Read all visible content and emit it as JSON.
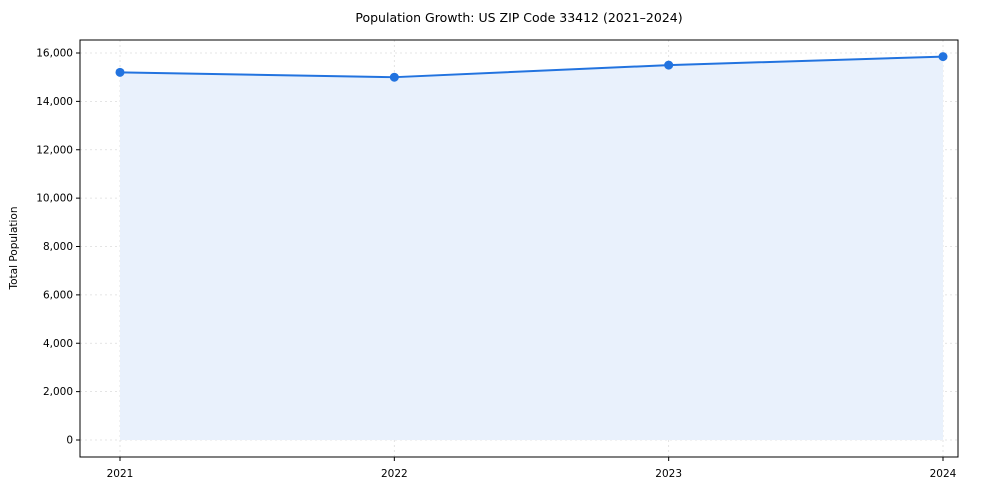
{
  "chart_data": {
    "type": "area",
    "title": "Population Growth: US ZIP Code 33412 (2021–2024)",
    "xlabel": "",
    "ylabel": "Total Population",
    "categories": [
      "2021",
      "2022",
      "2023",
      "2024"
    ],
    "series": [
      {
        "name": "Total Population",
        "values": [
          15200,
          15000,
          15500,
          15850
        ]
      }
    ],
    "ylim": [
      0,
      16550
    ],
    "yticks": [
      0,
      2000,
      4000,
      6000,
      8000,
      10000,
      12000,
      14000,
      16000
    ],
    "grid": true,
    "grid_style": "dashed",
    "legend_position": "none",
    "colors": {
      "line": "#2273df",
      "marker": "#2273df",
      "area_fill": "#e9f1fc",
      "grid": "#dcdcdc",
      "axis": "#000000",
      "background": "#ffffff"
    }
  }
}
